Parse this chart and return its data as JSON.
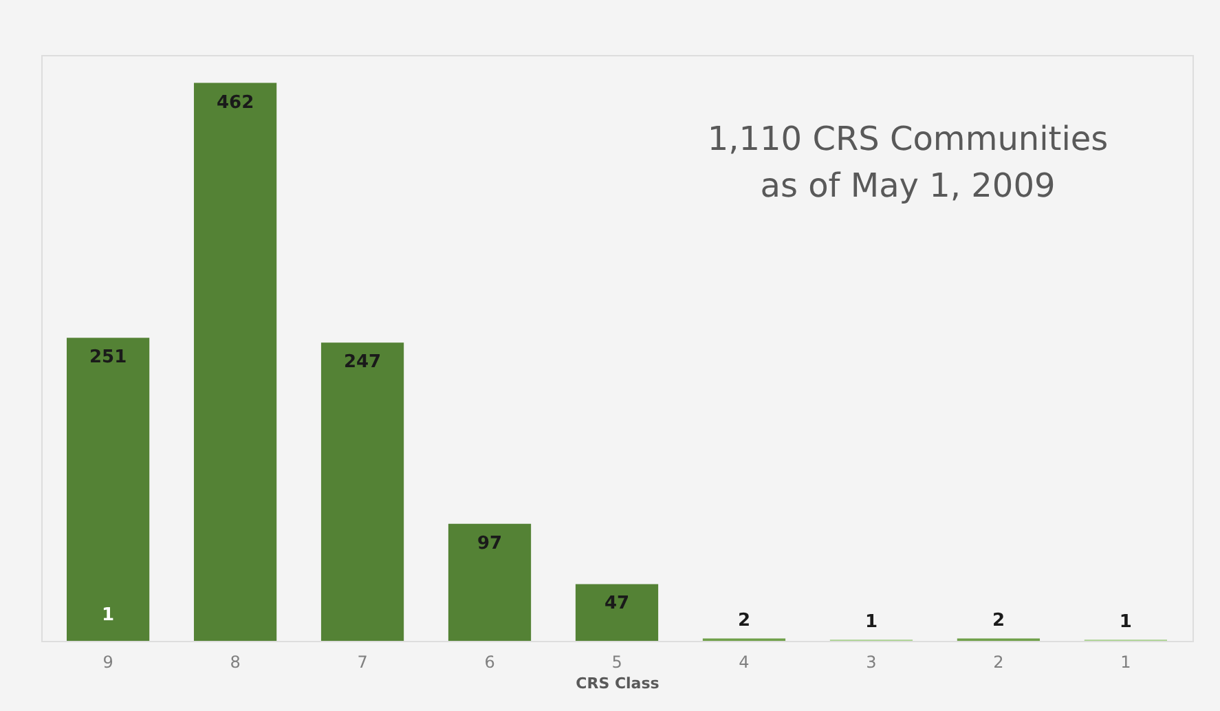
{
  "chart_data": {
    "type": "bar",
    "title": "1,110 CRS Communities\nas of May 1, 2009",
    "xlabel": "CRS Class",
    "categories": [
      "9",
      "8",
      "7",
      "6",
      "5",
      "4",
      "3",
      "2",
      "1"
    ],
    "values": [
      251,
      462,
      247,
      97,
      47,
      2,
      1,
      2,
      1
    ],
    "colors": [
      "#548235",
      "#548235",
      "#548235",
      "#548235",
      "#548235",
      "#70a04a",
      "#a9d18e",
      "#70a04a",
      "#a9d18e"
    ],
    "data_labels": true,
    "annotations": [
      {
        "text": "1",
        "x": "9",
        "y": 0
      }
    ]
  }
}
